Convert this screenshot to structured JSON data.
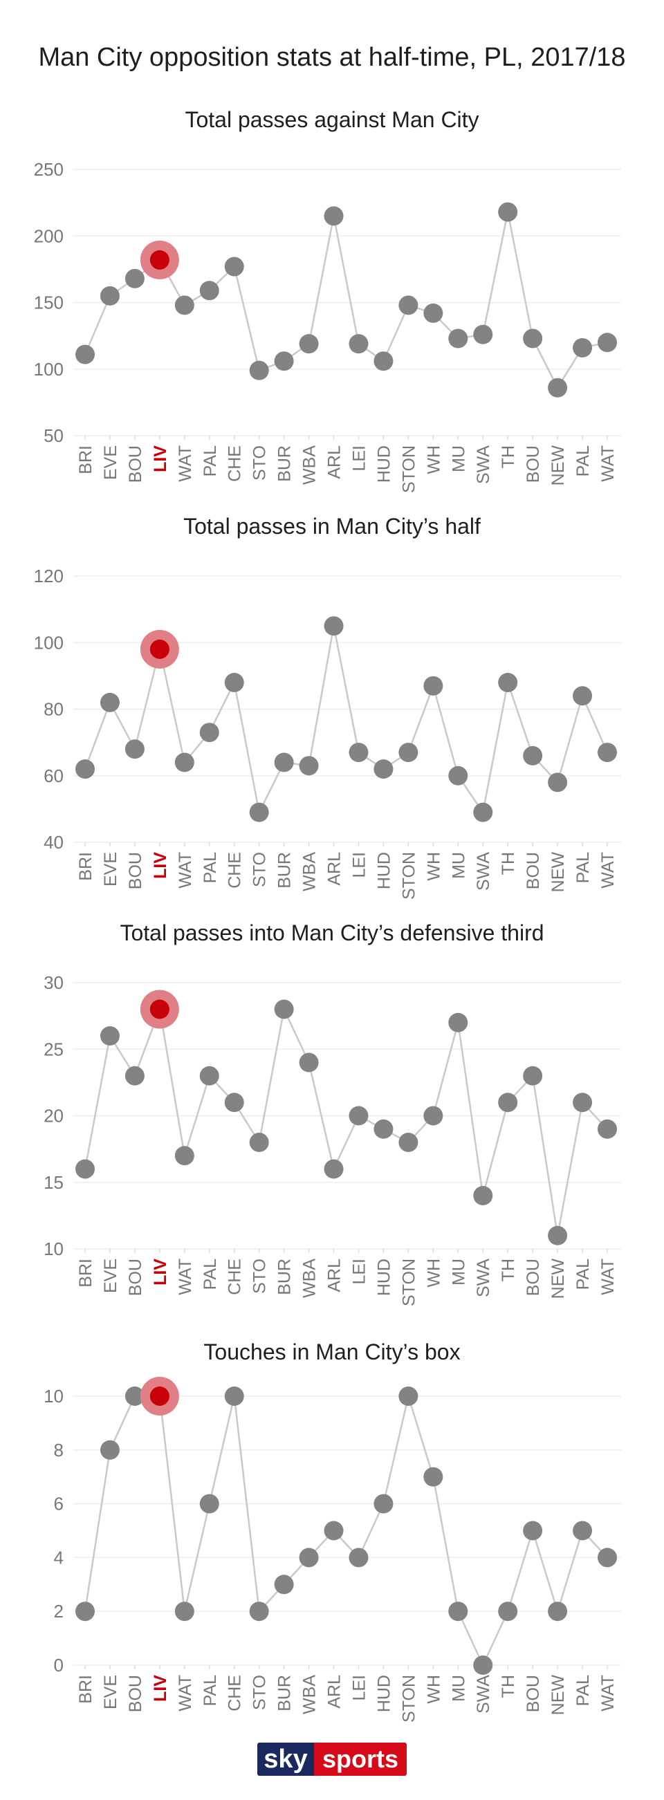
{
  "title": "Man City opposition stats at half-time, PL, 2017/18",
  "logo": {
    "part1": "sky",
    "part2": "sports"
  },
  "colors": {
    "point": "#838383",
    "line": "#c9c9c9",
    "highlight": "#c8000a",
    "highlight_halo": "#e07f86",
    "highlight_label": "#c8000a",
    "axis_text": "#777777",
    "grid": "#eeeeee"
  },
  "chart_data": [
    {
      "type": "line",
      "title": "Total passes against Man City",
      "categories": [
        "BRI",
        "EVE",
        "BOU",
        "LIV",
        "WAT",
        "PAL",
        "CHE",
        "STO",
        "BUR",
        "WBA",
        "ARL",
        "LEI",
        "HUD",
        "STON",
        "WH",
        "MU",
        "SWA",
        "TH",
        "BOU",
        "NEW",
        "PAL",
        "WAT"
      ],
      "values": [
        111,
        155,
        168,
        182,
        148,
        159,
        177,
        99,
        106,
        119,
        215,
        119,
        106,
        148,
        142,
        123,
        126,
        218,
        123,
        86,
        116,
        120
      ],
      "highlight_index": 3,
      "ylim": [
        50,
        250
      ],
      "yticks": [
        50,
        100,
        150,
        200,
        250
      ]
    },
    {
      "type": "line",
      "title": "Total passes in Man City’s half",
      "categories": [
        "BRI",
        "EVE",
        "BOU",
        "LIV",
        "WAT",
        "PAL",
        "CHE",
        "STO",
        "BUR",
        "WBA",
        "ARL",
        "LEI",
        "HUD",
        "STON",
        "WH",
        "MU",
        "SWA",
        "TH",
        "BOU",
        "NEW",
        "PAL",
        "WAT"
      ],
      "values": [
        62,
        82,
        68,
        98,
        64,
        73,
        88,
        49,
        64,
        63,
        105,
        67,
        62,
        67,
        87,
        60,
        49,
        88,
        66,
        58,
        84,
        67
      ],
      "highlight_index": 3,
      "ylim": [
        40,
        120
      ],
      "yticks": [
        40,
        60,
        80,
        100,
        120
      ]
    },
    {
      "type": "line",
      "title": "Total passes into Man City’s defensive third",
      "categories": [
        "BRI",
        "EVE",
        "BOU",
        "LIV",
        "WAT",
        "PAL",
        "CHE",
        "STO",
        "BUR",
        "WBA",
        "ARL",
        "LEI",
        "HUD",
        "STON",
        "WH",
        "MU",
        "SWA",
        "TH",
        "BOU",
        "NEW",
        "PAL",
        "WAT"
      ],
      "values": [
        16,
        26,
        23,
        28,
        17,
        23,
        21,
        18,
        28,
        24,
        16,
        20,
        19,
        18,
        20,
        27,
        14,
        21,
        23,
        11,
        21,
        19
      ],
      "highlight_index": 3,
      "ylim": [
        10,
        30
      ],
      "yticks": [
        10,
        15,
        20,
        25,
        30
      ]
    },
    {
      "type": "line",
      "title": "Touches in Man City’s box",
      "categories": [
        "BRI",
        "EVE",
        "BOU",
        "LIV",
        "WAT",
        "PAL",
        "CHE",
        "STO",
        "BUR",
        "WBA",
        "ARL",
        "LEI",
        "HUD",
        "STON",
        "WH",
        "MU",
        "SWA",
        "TH",
        "BOU",
        "NEW",
        "PAL",
        "WAT"
      ],
      "values": [
        2,
        8,
        10,
        10,
        2,
        6,
        10,
        2,
        3,
        4,
        5,
        4,
        6,
        10,
        7,
        2,
        0,
        2,
        5,
        2,
        5,
        4
      ],
      "highlight_index": 3,
      "ylim": [
        0,
        10
      ],
      "yticks": [
        0,
        2,
        4,
        6,
        8,
        10
      ]
    }
  ]
}
